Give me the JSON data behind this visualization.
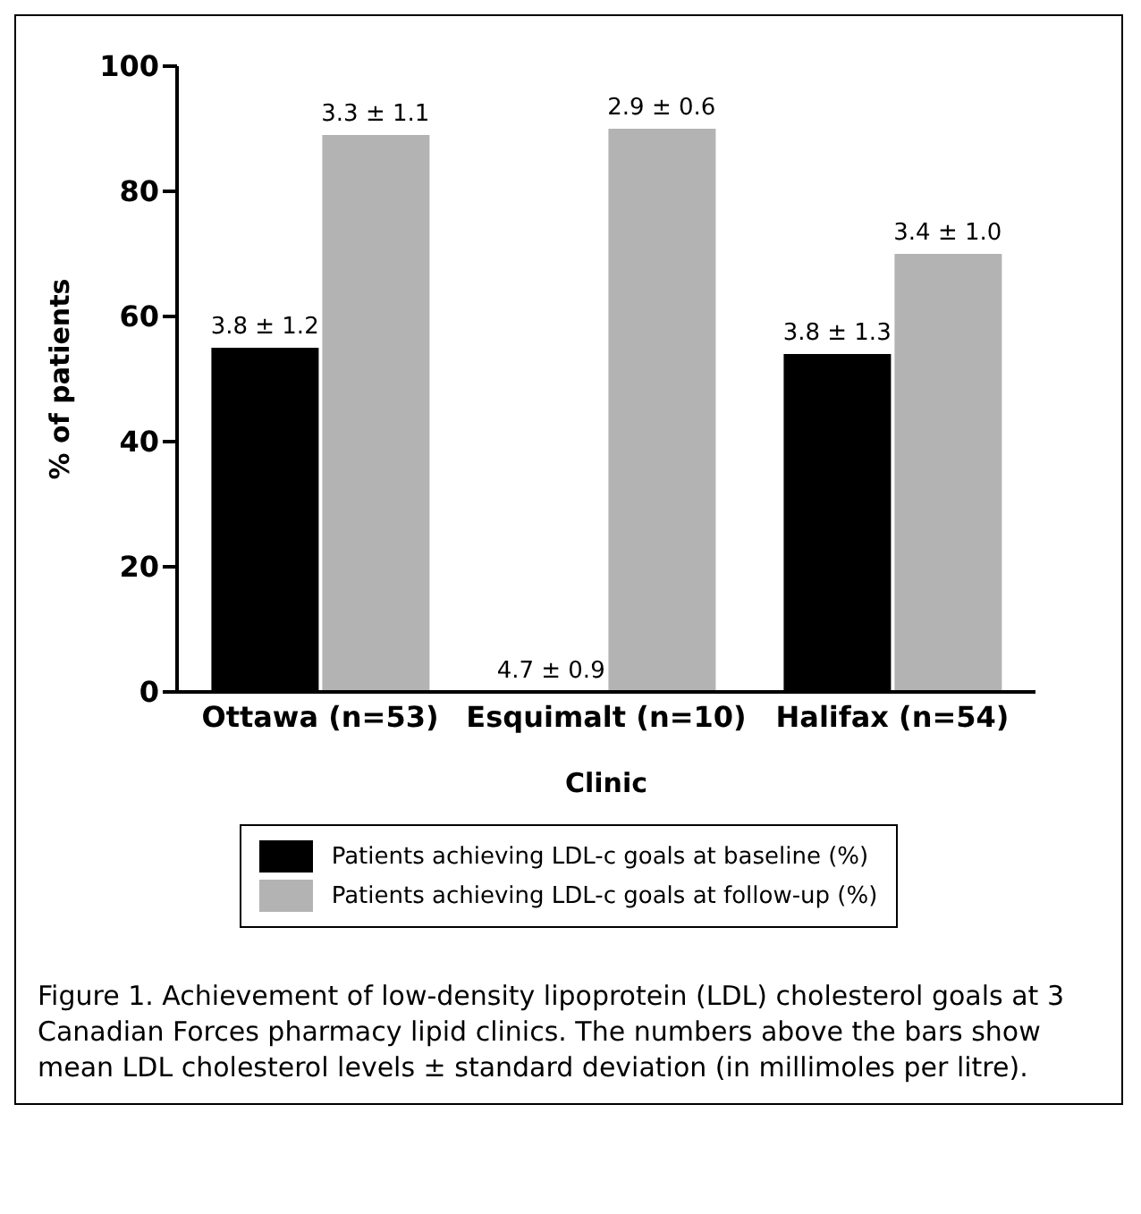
{
  "chart_data": {
    "type": "bar",
    "xlabel": "Clinic",
    "ylabel": "% of patients",
    "categories": [
      "Ottawa (n=53)",
      "Esquimalt (n=10)",
      "Halifax (n=54)"
    ],
    "series": [
      {
        "name": "Patients achieving LDL-c goals at baseline (%)",
        "color": "#000000",
        "values": [
          55,
          0,
          54
        ]
      },
      {
        "name": "Patients achieving LDL-c goals at follow-up (%)",
        "color": "#b3b3b3",
        "values": [
          89,
          90,
          70
        ]
      }
    ],
    "ylim": [
      0,
      100
    ],
    "yticks": [
      0,
      20,
      40,
      60,
      80,
      100
    ],
    "grid": false,
    "legend": "bottom",
    "annotations": [
      {
        "text": "3.8 ± 1.2",
        "x": "Ottawa (n=53)",
        "y": 55
      },
      {
        "text": "3.3 ± 1.1",
        "x": "Ottawa (n=53)",
        "y": 89
      },
      {
        "text": "4.7 ± 0.9",
        "x": "Esquimalt (n=10)",
        "y": 0
      },
      {
        "text": "2.9 ± 0.6",
        "x": "Esquimalt (n=10)",
        "y": 90
      },
      {
        "text": "3.8 ± 1.3",
        "x": "Halifax (n=54)",
        "y": 54
      },
      {
        "text": "3.4 ± 1.0",
        "x": "Halifax (n=54)",
        "y": 70
      },
      "Figure 1. Achievement of low-density lipoprotein (LDL) cholesterol goals at 3 Canadian Forces pharmacy lipid clinics. The numbers above the bars show mean LDL cholesterol levels ± standard deviation (in millimoles per litre)."
    ]
  }
}
